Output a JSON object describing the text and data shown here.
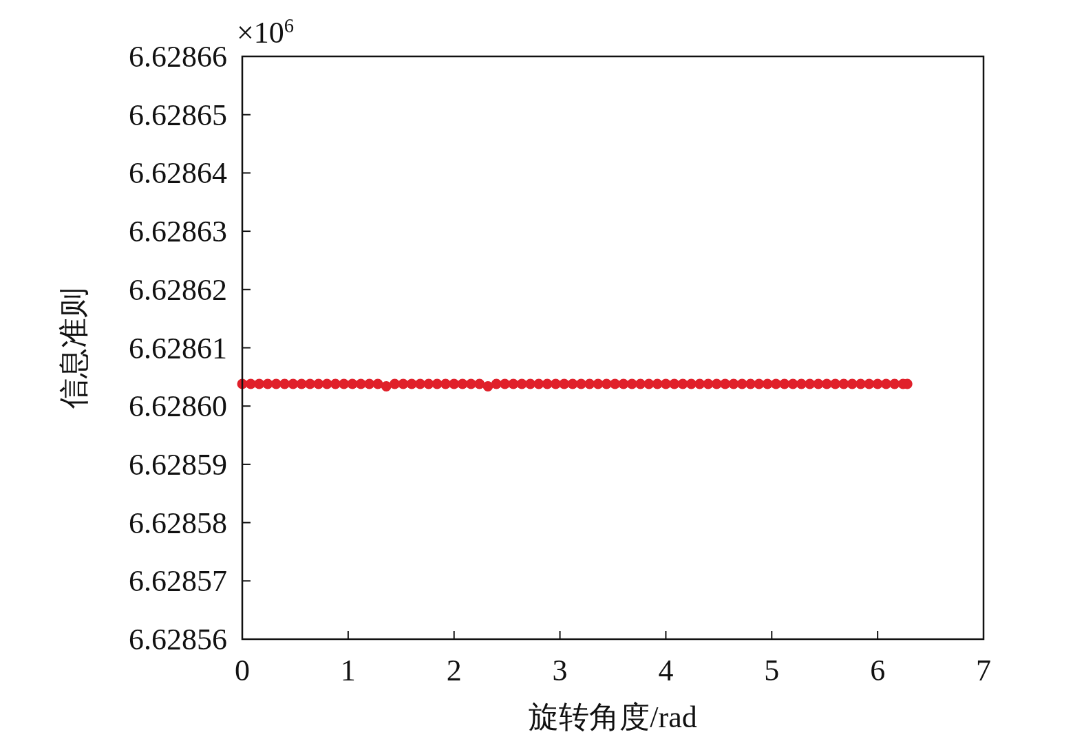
{
  "chart_data": {
    "type": "scatter",
    "xlabel": "旋转角度/rad",
    "ylabel": "信息准则",
    "annotations": [
      "×10$^{6}$"
    ],
    "xlim": [
      0,
      7
    ],
    "xticks": [
      0,
      1,
      2,
      3,
      4,
      5,
      6,
      7
    ],
    "ylim": [
      6.62856,
      6.62866
    ],
    "yticks": [
      6.62856,
      6.62857,
      6.62858,
      6.62859,
      {
        "value": 6.6286,
        "label": "6.62860"
      },
      6.62861,
      6.62862,
      6.62863,
      6.62864,
      6.62865,
      6.62866
    ],
    "marker": "circle",
    "series": [
      {
        "color": "#e0202a",
        "x": [
          0,
          0.08,
          0.16,
          0.24,
          0.32,
          0.4,
          0.48,
          0.56,
          0.64,
          0.72,
          0.8,
          0.88,
          0.96,
          1.04,
          1.12,
          1.2,
          1.28,
          1.36,
          1.44,
          1.52,
          1.6,
          1.68,
          1.76,
          1.84,
          1.92,
          2,
          2.08,
          2.16,
          2.24,
          2.32,
          2.4,
          2.48,
          2.56,
          2.64,
          2.72,
          2.8,
          2.88,
          2.96,
          3.04,
          3.12,
          3.2,
          3.28,
          3.36,
          3.44,
          3.52,
          3.6,
          3.68,
          3.76,
          3.84,
          3.92,
          4,
          4.08,
          4.16,
          4.24,
          4.32,
          4.4,
          4.48,
          4.56,
          4.64,
          4.72,
          4.8,
          4.88,
          4.96,
          5.04,
          5.12,
          5.2,
          5.28,
          5.36,
          5.44,
          5.52,
          5.6,
          5.68,
          5.76,
          5.84,
          5.92,
          6,
          6.08,
          6.16,
          6.24,
          6.28
        ],
        "values": [
          6.6286038,
          6.6286038,
          6.6286038,
          6.6286038,
          6.6286038,
          6.6286038,
          6.6286038,
          6.6286038,
          6.6286038,
          6.6286038,
          6.6286038,
          6.6286038,
          6.6286038,
          6.6286038,
          6.6286038,
          6.6286038,
          6.6286038,
          6.6286034,
          6.6286038,
          6.6286038,
          6.6286038,
          6.6286038,
          6.6286038,
          6.6286038,
          6.6286038,
          6.6286038,
          6.6286038,
          6.6286038,
          6.6286038,
          6.6286034,
          6.6286038,
          6.6286038,
          6.6286038,
          6.6286038,
          6.6286038,
          6.6286038,
          6.6286038,
          6.6286038,
          6.6286038,
          6.6286038,
          6.6286038,
          6.6286038,
          6.6286038,
          6.6286038,
          6.6286038,
          6.6286038,
          6.6286038,
          6.6286038,
          6.6286038,
          6.6286038,
          6.6286038,
          6.6286038,
          6.6286038,
          6.6286038,
          6.6286038,
          6.6286038,
          6.6286038,
          6.6286038,
          6.6286038,
          6.6286038,
          6.6286038,
          6.6286038,
          6.6286038,
          6.6286038,
          6.6286038,
          6.6286038,
          6.6286038,
          6.6286038,
          6.6286038,
          6.6286038,
          6.6286038,
          6.6286038,
          6.6286038,
          6.6286038,
          6.6286038,
          6.6286038,
          6.6286038,
          6.6286038,
          6.6286038,
          6.6286038
        ]
      }
    ]
  }
}
